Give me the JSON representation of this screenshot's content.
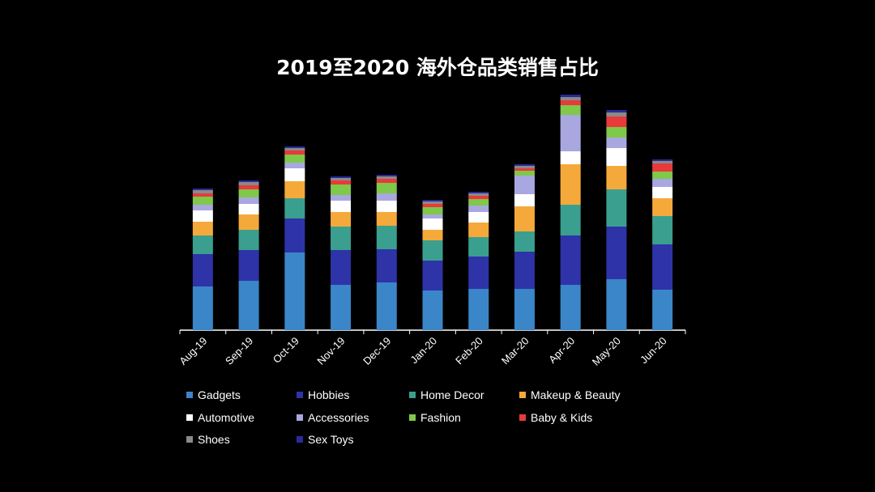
{
  "chart_data": {
    "type": "bar",
    "stacked": true,
    "title": "2019至2020 海外仓品类销售占比",
    "xlabel": "",
    "ylabel": "",
    "categories": [
      "Aug-19",
      "Sep-19",
      "Oct-19",
      "Nov-19",
      "Dec-19",
      "Jan-20",
      "Feb-20",
      "Mar-20",
      "Apr-20",
      "May-20",
      "Jun-20"
    ],
    "series": [
      {
        "name": "Gadgets",
        "color": "#3a86c8",
        "values": [
          54,
          61,
          96,
          56,
          59,
          49,
          51,
          51,
          56,
          63,
          50
        ]
      },
      {
        "name": "Hobbies",
        "color": "#2e33a8",
        "values": [
          40,
          38,
          42,
          43,
          41,
          37,
          40,
          46,
          61,
          65,
          56
        ]
      },
      {
        "name": "Home Decor",
        "color": "#3a9f8e",
        "values": [
          23,
          25,
          25,
          29,
          29,
          25,
          24,
          25,
          38,
          46,
          35
        ]
      },
      {
        "name": "Makeup & Beauty",
        "color": "#f5a93a",
        "values": [
          17,
          19,
          21,
          18,
          17,
          13,
          18,
          31,
          50,
          29,
          22
        ]
      },
      {
        "name": "Automotive",
        "color": "#ffffff",
        "values": [
          14,
          13,
          16,
          14,
          14,
          14,
          13,
          15,
          16,
          22,
          14
        ]
      },
      {
        "name": "Accessories",
        "color": "#a9a7e0",
        "values": [
          7,
          8,
          7,
          7,
          9,
          5,
          8,
          23,
          45,
          13,
          10
        ]
      },
      {
        "name": "Fashion",
        "color": "#7fc84a",
        "values": [
          10,
          10,
          10,
          13,
          13,
          9,
          8,
          6,
          12,
          13,
          9
        ]
      },
      {
        "name": "Baby & Kids",
        "color": "#e83a3a",
        "values": [
          4,
          5,
          5,
          5,
          5,
          4,
          4,
          3,
          6,
          13,
          10
        ]
      },
      {
        "name": "Shoes",
        "color": "#8a8a8a",
        "values": [
          4,
          4,
          3,
          3,
          3,
          3,
          3,
          3,
          4,
          5,
          3
        ]
      },
      {
        "name": "Sex Toys",
        "color": "#2a2a9a",
        "values": [
          2,
          2,
          2,
          2,
          2,
          2,
          2,
          2,
          3,
          3,
          2
        ]
      }
    ],
    "grid": false,
    "legend_position": "bottom"
  }
}
